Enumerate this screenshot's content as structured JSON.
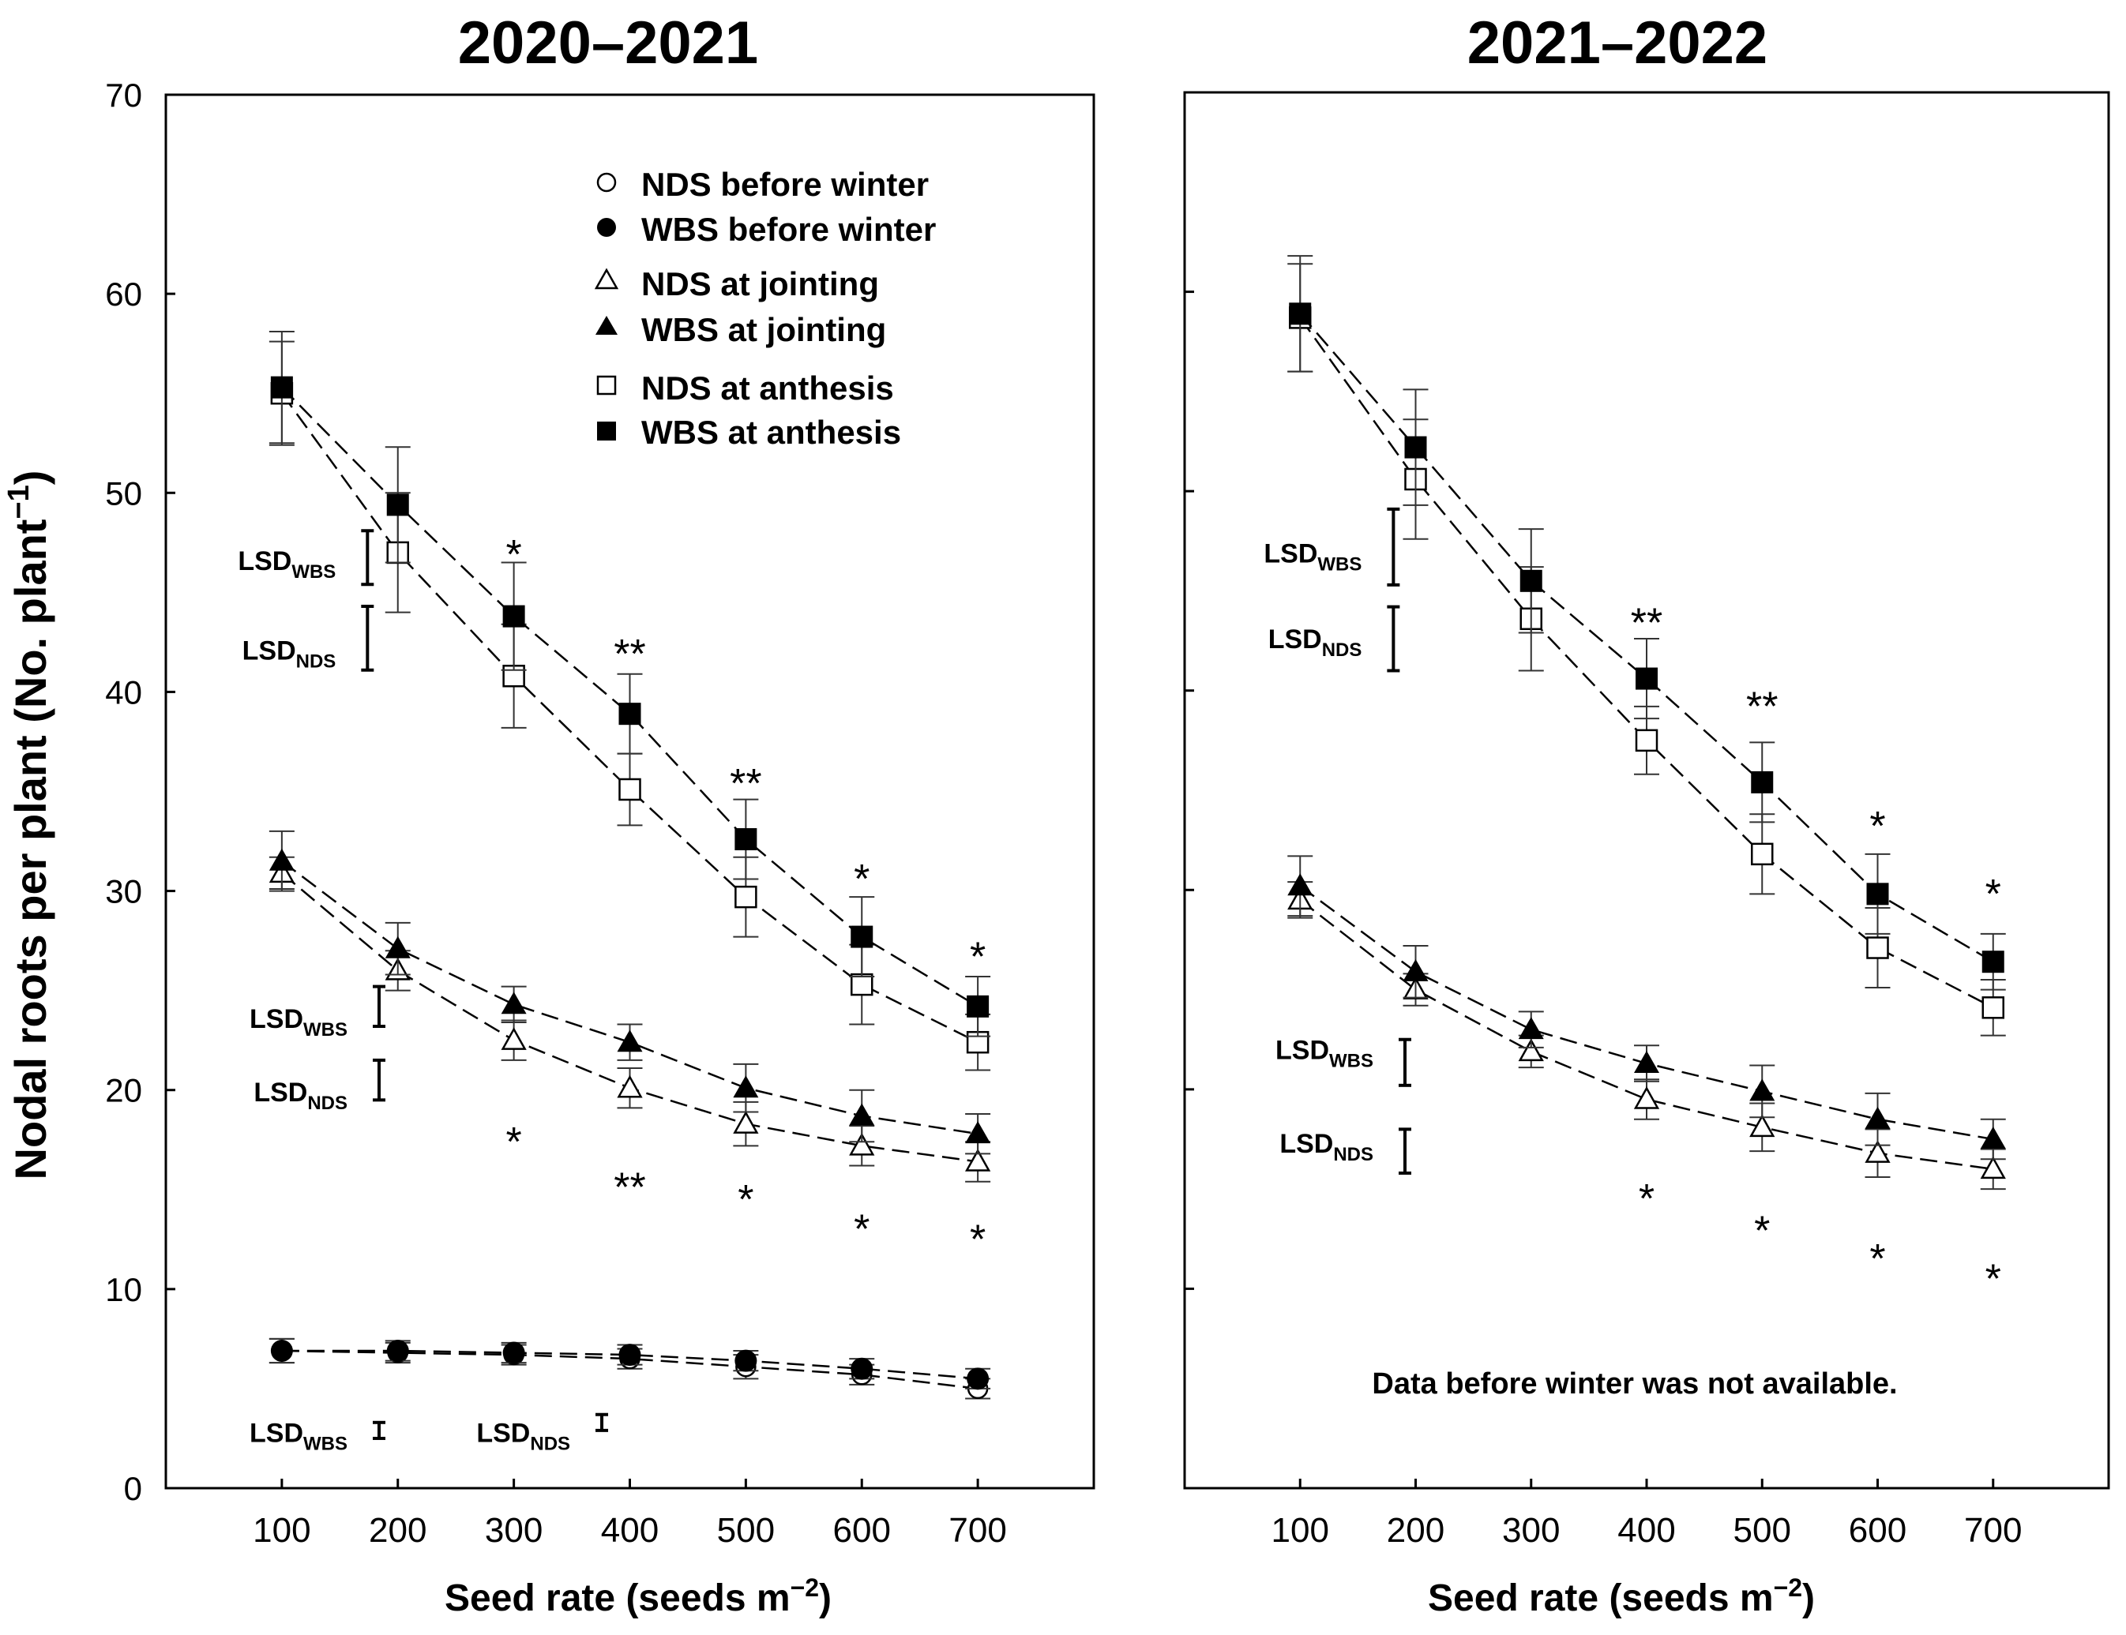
{
  "figure": {
    "ylabel": "Nodal roots per plant (No. plant",
    "ylabel_sup": "−1",
    "ylabel_tail": ")",
    "xlabel": "Seed rate (seeds m",
    "xlabel_sup": "−2",
    "xlabel_tail": ")"
  },
  "chart_data": [
    {
      "type": "line",
      "title": "2020–2021",
      "xlabel": "Seed rate (seeds m−2)",
      "ylabel": "Nodal roots per plant (No. plant−1)",
      "x": [
        100,
        200,
        300,
        400,
        500,
        600,
        700
      ],
      "xlim": [
        0,
        800
      ],
      "ylim": [
        0,
        70
      ],
      "yticks": [
        0,
        10,
        20,
        30,
        40,
        50,
        60,
        70
      ],
      "series": [
        {
          "name": "NDS before winter",
          "marker": "circle-open",
          "values": [
            6.9,
            6.8,
            6.7,
            6.5,
            6.1,
            5.7,
            5.0
          ],
          "err": [
            0.6,
            0.5,
            0.5,
            0.5,
            0.6,
            0.5,
            0.5
          ]
        },
        {
          "name": "WBS before winter",
          "marker": "circle-filled",
          "values": [
            6.9,
            6.9,
            6.8,
            6.7,
            6.4,
            6.0,
            5.5
          ],
          "err": [
            0.6,
            0.5,
            0.5,
            0.5,
            0.5,
            0.5,
            0.5
          ]
        },
        {
          "name": "NDS at jointing",
          "marker": "triangle-open",
          "values": [
            30.9,
            26.0,
            22.5,
            20.1,
            18.3,
            17.2,
            16.4
          ],
          "err": [
            0.8,
            1.0,
            1.0,
            1.0,
            1.1,
            1.0,
            1.0
          ]
        },
        {
          "name": "WBS at jointing",
          "marker": "triangle-filled",
          "values": [
            31.5,
            27.1,
            24.3,
            22.4,
            20.1,
            18.7,
            17.8
          ],
          "err": [
            1.5,
            1.3,
            0.9,
            0.9,
            1.2,
            1.3,
            1.0
          ]
        },
        {
          "name": "NDS at anthesis",
          "marker": "square-open",
          "values": [
            55.0,
            47.0,
            40.8,
            35.1,
            29.7,
            25.3,
            22.4
          ],
          "err": [
            2.6,
            3.0,
            2.6,
            1.8,
            2.0,
            2.0,
            1.4
          ]
        },
        {
          "name": "WBS at anthesis",
          "marker": "square-filled",
          "values": [
            55.3,
            49.4,
            43.8,
            38.9,
            32.6,
            27.7,
            24.2
          ],
          "err": [
            2.8,
            2.9,
            2.7,
            2.0,
            2.0,
            2.0,
            1.5
          ]
        }
      ],
      "legend": {
        "placement": "top-right",
        "entries": [
          "NDS before winter",
          "WBS before winter",
          "NDS at jointing",
          "WBS at jointing",
          "NDS at anthesis",
          "WBS at anthesis"
        ]
      },
      "annotations": [
        {
          "x": 300,
          "y": 47.0,
          "text": "*"
        },
        {
          "x": 400,
          "y": 42.0,
          "text": "**"
        },
        {
          "x": 500,
          "y": 35.5,
          "text": "**"
        },
        {
          "x": 600,
          "y": 30.7,
          "text": "*"
        },
        {
          "x": 700,
          "y": 26.8,
          "text": "*"
        },
        {
          "x": 300,
          "y": 17.5,
          "text": "*"
        },
        {
          "x": 400,
          "y": 15.2,
          "text": "**"
        },
        {
          "x": 500,
          "y": 14.6,
          "text": "*"
        },
        {
          "x": 600,
          "y": 13.1,
          "text": "*"
        },
        {
          "x": 700,
          "y": 12.6,
          "text": "*"
        }
      ],
      "lsd": [
        {
          "label": "LSD",
          "sub": "WBS",
          "x": 150,
          "label_y": 46.6,
          "bar": [
            45.4,
            48.1
          ]
        },
        {
          "label": "LSD",
          "sub": "NDS",
          "x": 150,
          "label_y": 42.1,
          "bar": [
            41.1,
            44.3
          ]
        },
        {
          "label": "LSD",
          "sub": "WBS",
          "x": 160,
          "label_y": 23.6,
          "bar": [
            23.2,
            25.2
          ]
        },
        {
          "label": "LSD",
          "sub": "NDS",
          "x": 160,
          "label_y": 19.9,
          "bar": [
            19.5,
            21.5
          ]
        },
        {
          "label": "LSD",
          "sub": "WBS",
          "x": 160,
          "label_y": 2.8,
          "bar": [
            2.5,
            3.3
          ]
        },
        {
          "label": "LSD",
          "sub": "NDS",
          "x": 335,
          "label_y": 2.8,
          "bar": [
            2.9,
            3.7
          ]
        }
      ],
      "note": ""
    },
    {
      "type": "line",
      "title": "2021–2022",
      "xlabel": "Seed rate (seeds m−2)",
      "ylabel": "",
      "x": [
        100,
        200,
        300,
        400,
        500,
        600,
        700
      ],
      "xlim": [
        0,
        800
      ],
      "ylim": [
        0,
        70
      ],
      "yticks": [
        0,
        10,
        20,
        30,
        40,
        50,
        60,
        70
      ],
      "series": [
        {
          "name": "NDS at jointing",
          "marker": "triangle-open",
          "values": [
            29.5,
            25.0,
            21.9,
            19.5,
            18.1,
            16.8,
            16.0
          ],
          "err": [
            0.9,
            0.8,
            0.8,
            1.0,
            1.2,
            1.2,
            1.0
          ]
        },
        {
          "name": "WBS at jointing",
          "marker": "triangle-filled",
          "values": [
            30.2,
            25.9,
            23.0,
            21.3,
            19.9,
            18.5,
            17.5
          ],
          "err": [
            1.5,
            1.3,
            0.9,
            0.9,
            1.3,
            1.3,
            1.0
          ]
        },
        {
          "name": "NDS at anthesis",
          "marker": "square-open",
          "values": [
            58.7,
            50.6,
            43.6,
            37.5,
            31.8,
            27.1,
            24.1
          ],
          "err": [
            2.7,
            3.0,
            2.6,
            1.7,
            2.0,
            2.0,
            1.4
          ]
        },
        {
          "name": "WBS at anthesis",
          "marker": "square-filled",
          "values": [
            58.9,
            52.2,
            45.5,
            40.6,
            35.4,
            29.8,
            26.4
          ],
          "err": [
            2.9,
            2.9,
            2.6,
            2.0,
            2.0,
            2.0,
            1.4
          ]
        }
      ],
      "annotations": [
        {
          "x": 400,
          "y": 43.5,
          "text": "**"
        },
        {
          "x": 500,
          "y": 39.3,
          "text": "**"
        },
        {
          "x": 600,
          "y": 33.3,
          "text": "*"
        },
        {
          "x": 700,
          "y": 29.9,
          "text": "*"
        },
        {
          "x": 400,
          "y": 14.6,
          "text": "*"
        },
        {
          "x": 500,
          "y": 13.0,
          "text": "*"
        },
        {
          "x": 600,
          "y": 11.6,
          "text": "*"
        },
        {
          "x": 700,
          "y": 10.6,
          "text": "*"
        }
      ],
      "lsd": [
        {
          "label": "LSD",
          "sub": "WBS",
          "x": 150,
          "label_y": 46.9,
          "bar": [
            45.3,
            49.1
          ]
        },
        {
          "label": "LSD",
          "sub": "NDS",
          "x": 150,
          "label_y": 42.6,
          "bar": [
            41.0,
            44.2
          ]
        },
        {
          "label": "LSD",
          "sub": "WBS",
          "x": 160,
          "label_y": 22.0,
          "bar": [
            20.2,
            22.5
          ]
        },
        {
          "label": "LSD",
          "sub": "NDS",
          "x": 160,
          "label_y": 17.3,
          "bar": [
            15.8,
            18.0
          ]
        }
      ],
      "note": "Data before winter was not available."
    }
  ]
}
